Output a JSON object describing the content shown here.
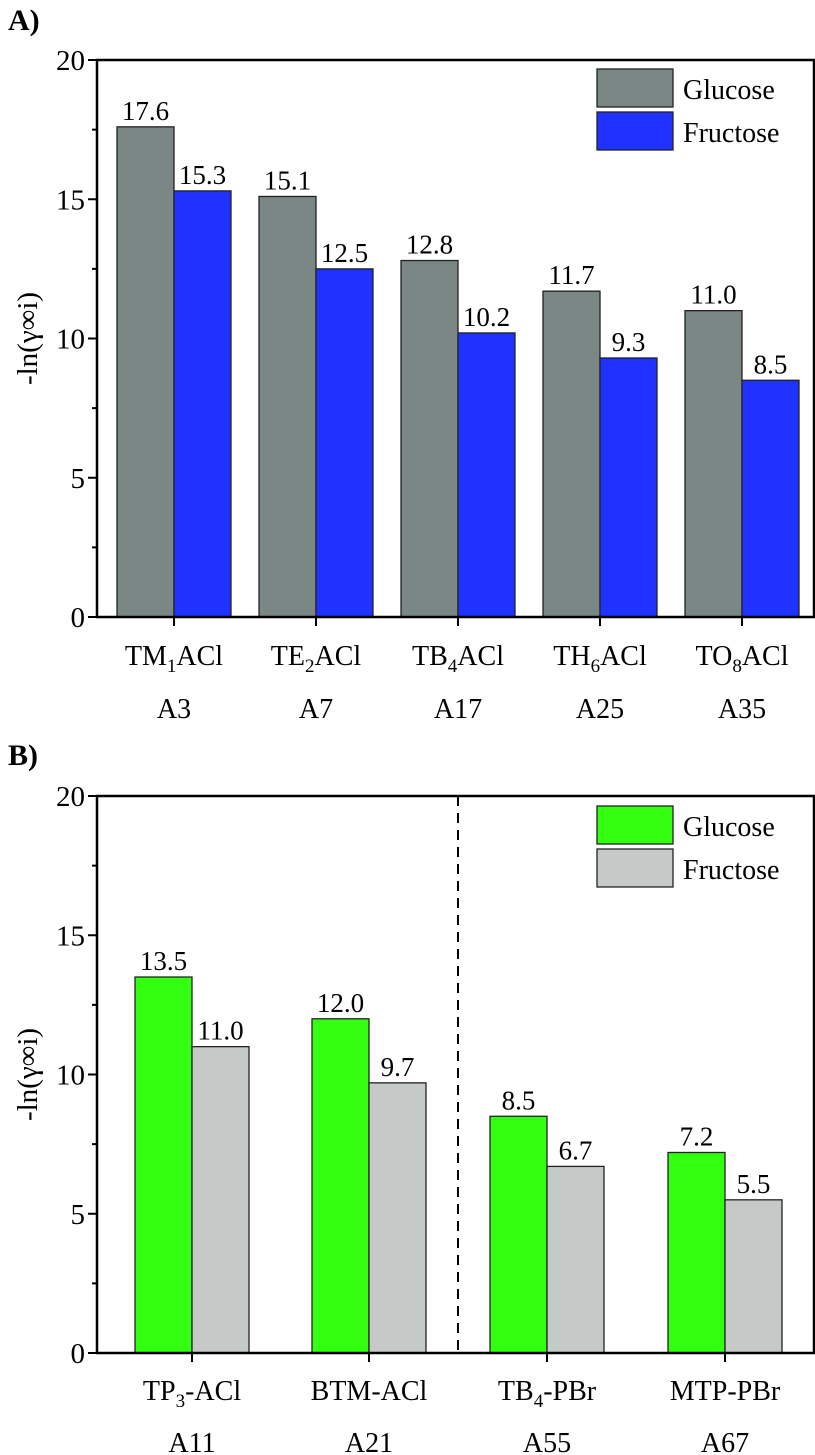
{
  "chart_data": [
    {
      "type": "bar",
      "panel_label": "A)",
      "ylabel": "-ln(γ∞i)",
      "ylim": [
        0,
        20
      ],
      "yticks": [
        0,
        5,
        10,
        15,
        20
      ],
      "categories": [
        {
          "name": "TM",
          "sub": "1",
          "rest": "ACl",
          "code": "A3"
        },
        {
          "name": "TE",
          "sub": "2",
          "rest": "ACl",
          "code": "A7"
        },
        {
          "name": "TB",
          "sub": "4",
          "rest": "ACl",
          "code": "A17"
        },
        {
          "name": "TH",
          "sub": "6",
          "rest": "ACl",
          "code": "A25"
        },
        {
          "name": "TO",
          "sub": "8",
          "rest": "ACl",
          "code": "A35"
        }
      ],
      "series": [
        {
          "name": "Glucose",
          "color": "#7a8784",
          "values": [
            17.6,
            15.1,
            12.8,
            11.7,
            11.0
          ],
          "labels": [
            "17.6",
            "15.1",
            "12.8",
            "11.7",
            "11.0"
          ]
        },
        {
          "name": "Fructose",
          "color": "#1f32ff",
          "values": [
            15.3,
            12.5,
            10.2,
            9.3,
            8.5
          ],
          "labels": [
            "15.3",
            "12.5",
            "10.2",
            "9.3",
            "8.5"
          ]
        }
      ],
      "legend": "top-right",
      "divider_after_category": null
    },
    {
      "type": "bar",
      "panel_label": "B)",
      "ylabel": "-ln(γ∞i)",
      "ylim": [
        0,
        20
      ],
      "yticks": [
        0,
        5,
        10,
        15,
        20
      ],
      "categories": [
        {
          "name": "TP",
          "sub": "3",
          "rest": "-ACl",
          "code": "A11"
        },
        {
          "name": "BTM-ACl",
          "sub": "",
          "rest": "",
          "code": "A21"
        },
        {
          "name": "TB",
          "sub": "4",
          "rest": "-PBr",
          "code": "A55"
        },
        {
          "name": "MTP-PBr",
          "sub": "",
          "rest": "",
          "code": "A67"
        }
      ],
      "series": [
        {
          "name": "Glucose",
          "color": "#33ff11",
          "values": [
            13.5,
            12.0,
            8.5,
            7.2
          ],
          "labels": [
            "13.5",
            "12.0",
            "8.5",
            "7.2"
          ]
        },
        {
          "name": "Fructose",
          "color": "#c5cac8",
          "values": [
            11.0,
            9.7,
            6.7,
            5.5
          ],
          "labels": [
            "11.0",
            "9.7",
            "6.7",
            "5.5"
          ]
        }
      ],
      "legend": "top-right",
      "divider_after_category": 1
    }
  ]
}
